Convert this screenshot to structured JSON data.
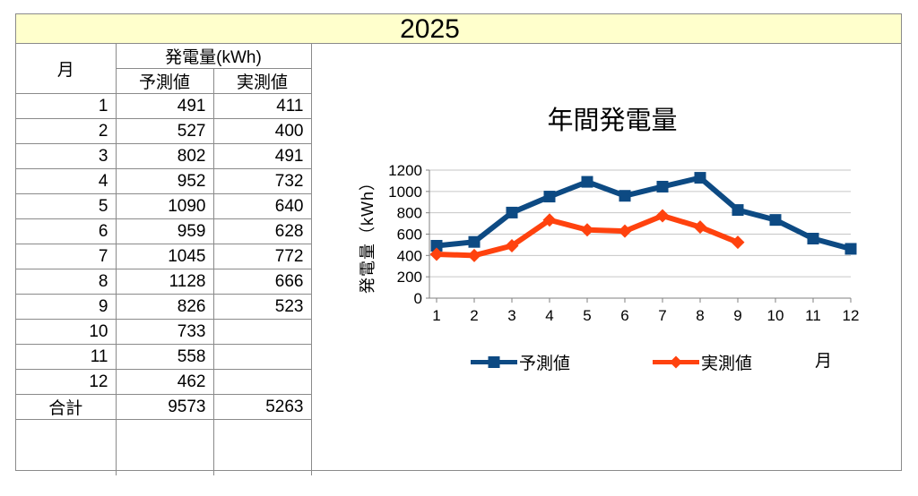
{
  "sheet": {
    "year_title": "2025",
    "table": {
      "col_month": "月",
      "col_group": "発電量(kWh)",
      "col_forecast": "予測値",
      "col_actual": "実測値",
      "total_label": "合計",
      "rows": [
        {
          "month": "1",
          "forecast": "491",
          "actual": "411"
        },
        {
          "month": "2",
          "forecast": "527",
          "actual": "400"
        },
        {
          "month": "3",
          "forecast": "802",
          "actual": "491"
        },
        {
          "month": "4",
          "forecast": "952",
          "actual": "732"
        },
        {
          "month": "5",
          "forecast": "1090",
          "actual": "640"
        },
        {
          "month": "6",
          "forecast": "959",
          "actual": "628"
        },
        {
          "month": "7",
          "forecast": "1045",
          "actual": "772"
        },
        {
          "month": "8",
          "forecast": "1128",
          "actual": "666"
        },
        {
          "month": "9",
          "forecast": "826",
          "actual": "523"
        },
        {
          "month": "10",
          "forecast": "733",
          "actual": ""
        },
        {
          "month": "11",
          "forecast": "558",
          "actual": ""
        },
        {
          "month": "12",
          "forecast": "462",
          "actual": ""
        }
      ],
      "total": {
        "forecast": "9573",
        "actual": "5263"
      }
    }
  },
  "chart_data": {
    "type": "line",
    "title": "年間発電量",
    "xlabel": "月",
    "ylabel": "発電量（kWh）",
    "categories": [
      1,
      2,
      3,
      4,
      5,
      6,
      7,
      8,
      9,
      10,
      11,
      12
    ],
    "series": [
      {
        "name": "予測値",
        "marker": "square",
        "color": "#0D4A83",
        "values": [
          491,
          527,
          802,
          952,
          1090,
          959,
          1045,
          1128,
          826,
          733,
          558,
          462
        ]
      },
      {
        "name": "実測値",
        "marker": "diamond",
        "color": "#FF420E",
        "values": [
          411,
          400,
          491,
          732,
          640,
          628,
          772,
          666,
          523
        ]
      }
    ],
    "ylim": [
      0,
      1200
    ],
    "y_ticks": [
      0,
      200,
      400,
      600,
      800,
      1000,
      1200
    ],
    "grid": true,
    "legend_position": "bottom"
  },
  "colors": {
    "band_bg": "#FFFFCC",
    "table_border": "#8A8A8A",
    "grid_line": "#C6C6C6",
    "axis_line": "#808080"
  }
}
